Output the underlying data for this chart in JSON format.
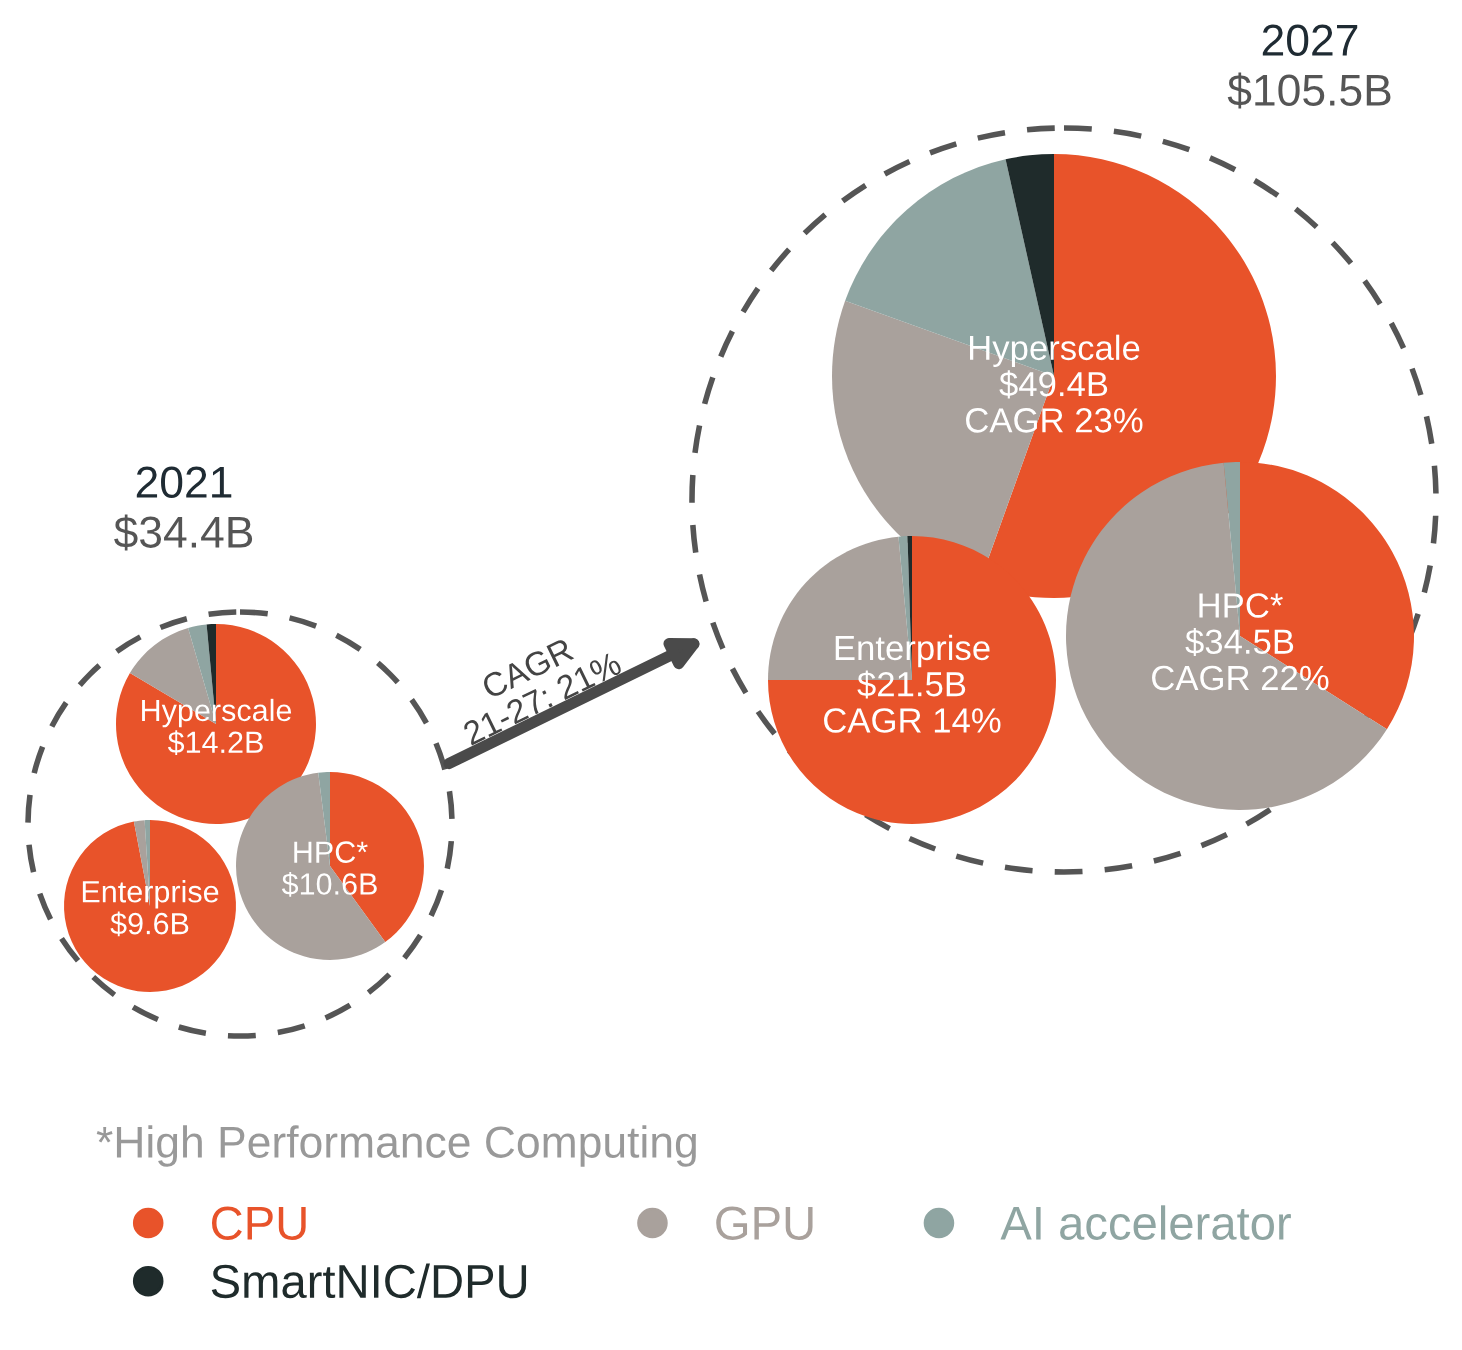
{
  "chart_data": [
    {
      "type": "pie",
      "title": "Hyperscale",
      "annotations": [
        "$14.2B"
      ],
      "categories": [
        "CPU",
        "GPU",
        "AI accelerator",
        "SmartNIC/DPU"
      ],
      "values": [
        83.5,
        12,
        3,
        1.5
      ],
      "colors": [
        "#e8532a",
        "#a9a19c",
        "#8fa5a2",
        "#1f2b2b"
      ],
      "legend": "bottom"
    },
    {
      "type": "pie",
      "title": "Enterprise",
      "annotations": [
        "$9.6B"
      ],
      "categories": [
        null,
        null,
        null,
        null
      ],
      "values": [
        97,
        2,
        1,
        0
      ],
      "colors": [
        "#e8532a",
        "#a9a19c",
        "#8fa5a2",
        "#1f2b2b"
      ]
    },
    {
      "type": "pie",
      "title": "HPC*",
      "annotations": [
        "$10.6B"
      ],
      "categories": [
        null,
        null,
        null,
        null
      ],
      "values": [
        40,
        58,
        2,
        0
      ],
      "colors": [
        "#e8532a",
        "#a9a19c",
        "#8fa5a2",
        "#1f2b2b"
      ]
    },
    {
      "type": "pie",
      "title": "Hyperscale",
      "annotations": [
        "$49.4B",
        "CAGR 23%"
      ],
      "categories": [
        null,
        null,
        null,
        null
      ],
      "values": [
        55.5,
        25,
        16,
        3.5
      ],
      "colors": [
        "#e8532a",
        "#a9a19c",
        "#8fa5a2",
        "#1f2b2b"
      ]
    },
    {
      "type": "pie",
      "title": "Enterprise",
      "annotations": [
        "$21.5B",
        "CAGR 14%"
      ],
      "categories": [
        null,
        null,
        null,
        null
      ],
      "values": [
        75,
        23.5,
        1,
        0.5
      ],
      "colors": [
        "#e8532a",
        "#a9a19c",
        "#8fa5a2",
        "#1f2b2b"
      ]
    },
    {
      "type": "pie",
      "title": "HPC*",
      "annotations": [
        "$34.5B",
        "CAGR 22%"
      ],
      "categories": [
        null,
        null,
        null,
        null
      ],
      "values": [
        34,
        64.5,
        1.5,
        0
      ],
      "colors": [
        "#e8532a",
        "#a9a19c",
        "#8fa5a2",
        "#1f2b2b"
      ]
    },
    {
      "type": "other",
      "annotations": [
        "2021",
        "$34.4B",
        "2027",
        "$105.5B",
        "CAGR\n21-27: 21%",
        "*High Performance Computing"
      ]
    }
  ]
}
